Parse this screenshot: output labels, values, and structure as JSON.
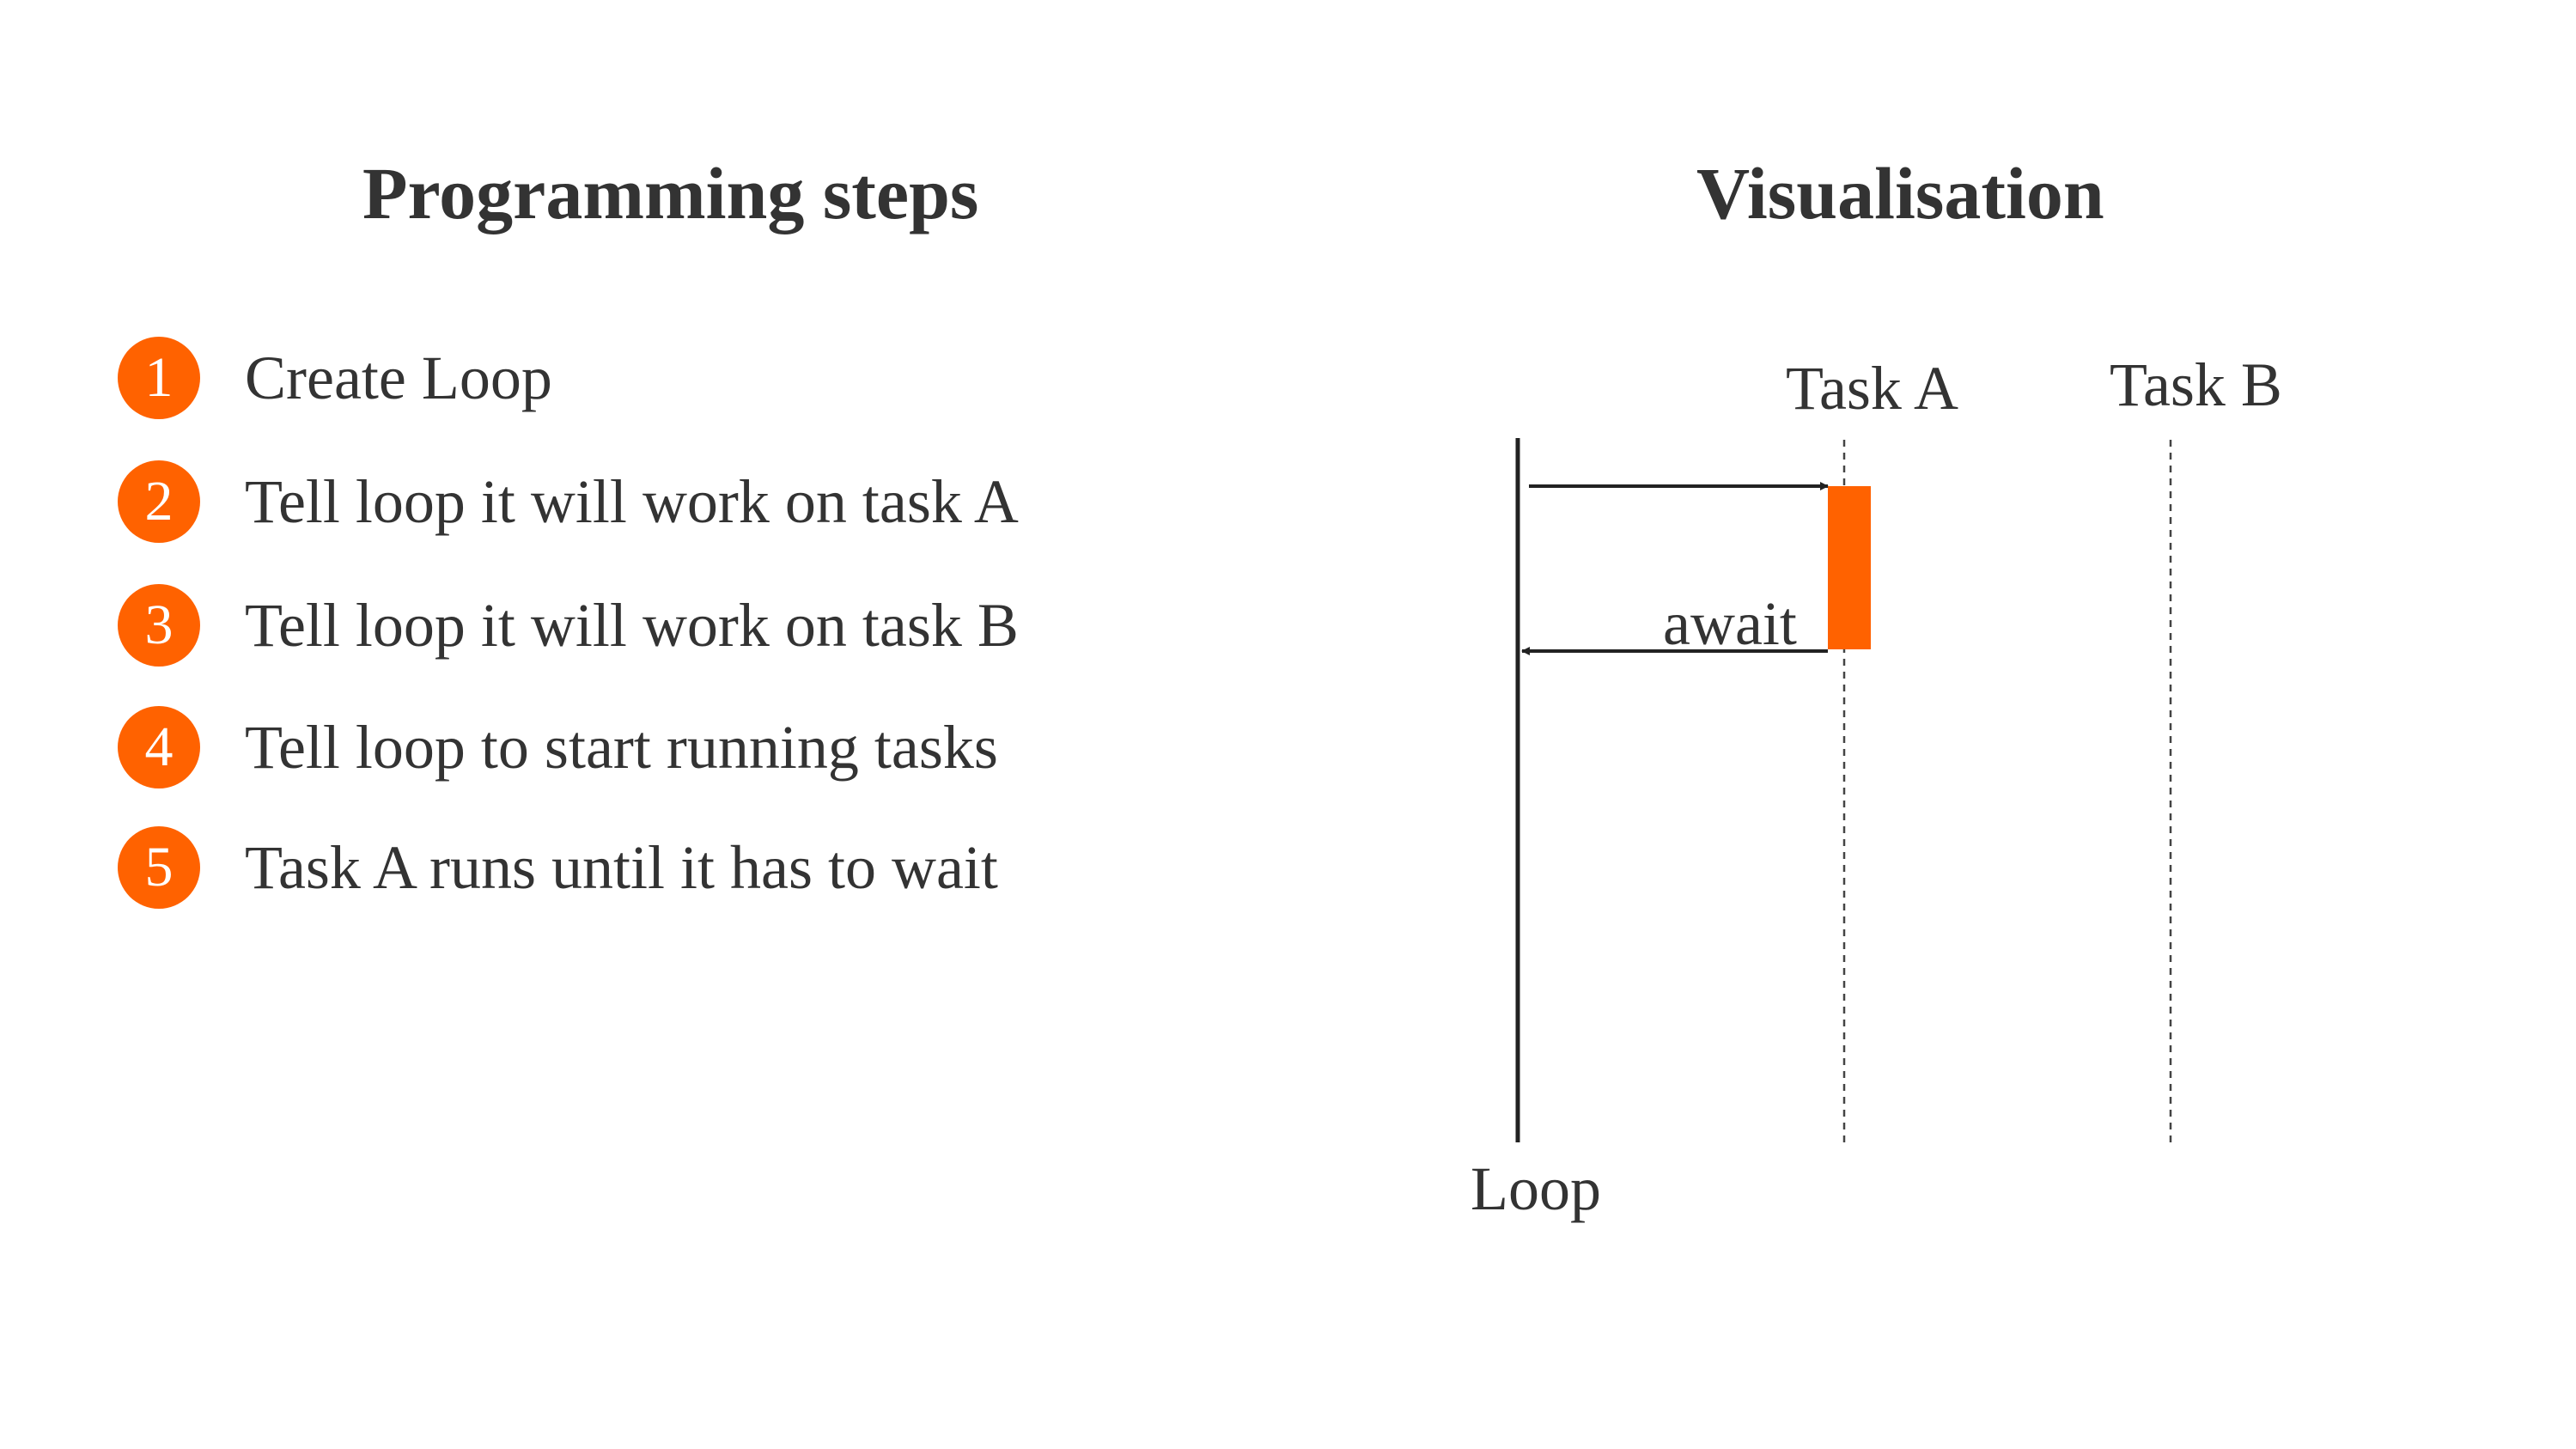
{
  "headings": {
    "steps": "Programming steps",
    "visualisation": "Visualisation"
  },
  "steps": [
    {
      "number": "1",
      "text": "Create Loop"
    },
    {
      "number": "2",
      "text": "Tell loop it will work on task A"
    },
    {
      "number": "3",
      "text": "Tell loop it will work on task B"
    },
    {
      "number": "4",
      "text": "Tell loop to start running tasks"
    },
    {
      "number": "5",
      "text": "Task A runs until it has to wait"
    }
  ],
  "diagram": {
    "loop_label": "Loop",
    "task_a_label": "Task A",
    "task_b_label": "Task B",
    "await_label": "await"
  },
  "colors": {
    "accent": "#ff6200",
    "text": "#333333",
    "line": "#222222"
  }
}
